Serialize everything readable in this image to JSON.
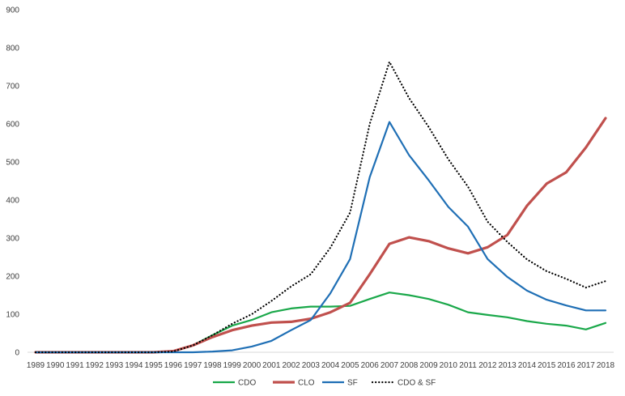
{
  "chart_data": {
    "type": "line",
    "title": "",
    "xlabel": "",
    "ylabel": "",
    "ylim": [
      0,
      900
    ],
    "yticks": [
      0,
      100,
      200,
      300,
      400,
      500,
      600,
      700,
      800,
      900
    ],
    "grid": false,
    "legend_position": "bottom",
    "x": [
      "1989",
      "1990",
      "1991",
      "1992",
      "1993",
      "1994",
      "1995",
      "1996",
      "1997",
      "1998",
      "1999",
      "2000",
      "2001",
      "2002",
      "2003",
      "2004",
      "2005",
      "2006",
      "2007",
      "2008",
      "2009",
      "2010",
      "2011",
      "2012",
      "2013",
      "2014",
      "2015",
      "2016",
      "2017",
      "2018"
    ],
    "series": [
      {
        "name": "CDO",
        "color": "#1aa84a",
        "style": "solid",
        "values": [
          0,
          0,
          0,
          0,
          0,
          0,
          0,
          2,
          18,
          45,
          70,
          85,
          105,
          115,
          120,
          120,
          122,
          140,
          157,
          150,
          140,
          125,
          105,
          98,
          92,
          82,
          75,
          70,
          60,
          77
        ]
      },
      {
        "name": "CLO",
        "color": "#c0504d",
        "style": "solid",
        "values": [
          0,
          0,
          0,
          0,
          0,
          0,
          0,
          3,
          18,
          40,
          58,
          70,
          78,
          80,
          88,
          105,
          130,
          205,
          285,
          302,
          292,
          273,
          260,
          276,
          308,
          385,
          443,
          473,
          538,
          615
        ]
      },
      {
        "name": "SF",
        "color": "#1f6fb5",
        "style": "solid",
        "values": [
          0,
          0,
          0,
          0,
          0,
          0,
          0,
          0,
          0,
          2,
          5,
          15,
          30,
          58,
          85,
          155,
          245,
          460,
          605,
          518,
          452,
          382,
          330,
          245,
          198,
          162,
          138,
          123,
          110,
          110
        ]
      },
      {
        "name": "CDO & SF",
        "color": "#000000",
        "style": "dotted",
        "values": [
          0,
          0,
          0,
          0,
          0,
          0,
          0,
          2,
          18,
          45,
          75,
          100,
          135,
          173,
          205,
          275,
          367,
          600,
          763,
          668,
          592,
          507,
          435,
          343,
          290,
          244,
          213,
          193,
          170,
          187
        ]
      }
    ]
  }
}
